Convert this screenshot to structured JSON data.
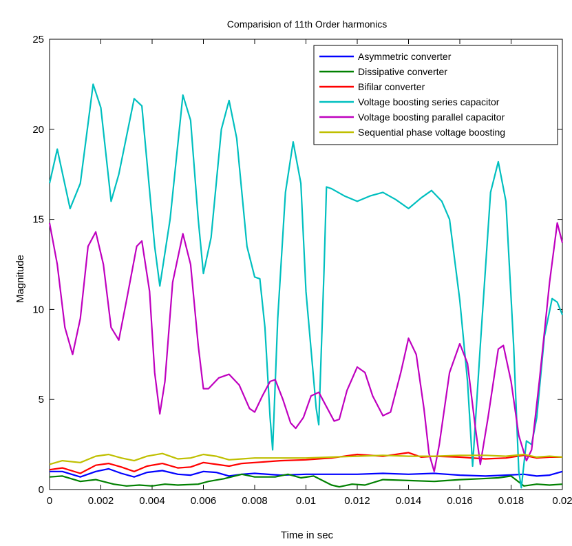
{
  "chart_data": {
    "type": "line",
    "title": "Comparision of 11th Order harmonics",
    "xlabel": "Time in sec",
    "ylabel": "Magnitude",
    "xlim": [
      0,
      0.02
    ],
    "ylim": [
      0,
      25
    ],
    "xticks": [
      0,
      0.002,
      0.004,
      0.006,
      0.008,
      0.01,
      0.012,
      0.014,
      0.016,
      0.018,
      0.02
    ],
    "xtick_labels": [
      "0",
      "0.002",
      "0.004",
      "0.006",
      "0.008",
      "0.01",
      "0.012",
      "0.014",
      "0.016",
      "0.018",
      "0.02"
    ],
    "yticks": [
      0,
      5,
      10,
      15,
      20,
      25
    ],
    "ytick_labels": [
      "0",
      "5",
      "10",
      "15",
      "20",
      "25"
    ],
    "grid": false,
    "legend_position": "top-right",
    "series": [
      {
        "name": "Asymmetric converter",
        "color": "#0000ff",
        "points": [
          [
            0,
            1.0
          ],
          [
            0.0005,
            1.0
          ],
          [
            0.0012,
            0.7
          ],
          [
            0.0018,
            1.0
          ],
          [
            0.0023,
            1.15
          ],
          [
            0.0028,
            0.9
          ],
          [
            0.0033,
            0.7
          ],
          [
            0.0038,
            0.95
          ],
          [
            0.0044,
            1.05
          ],
          [
            0.005,
            0.85
          ],
          [
            0.0055,
            0.8
          ],
          [
            0.006,
            1.0
          ],
          [
            0.0065,
            0.95
          ],
          [
            0.007,
            0.75
          ],
          [
            0.0075,
            0.85
          ],
          [
            0.008,
            0.9
          ],
          [
            0.009,
            0.8
          ],
          [
            0.01,
            0.85
          ],
          [
            0.011,
            0.85
          ],
          [
            0.012,
            0.85
          ],
          [
            0.013,
            0.9
          ],
          [
            0.014,
            0.85
          ],
          [
            0.015,
            0.9
          ],
          [
            0.016,
            0.8
          ],
          [
            0.017,
            0.75
          ],
          [
            0.0178,
            0.8
          ],
          [
            0.0185,
            0.85
          ],
          [
            0.019,
            0.75
          ],
          [
            0.0195,
            0.8
          ],
          [
            0.02,
            1.0
          ]
        ]
      },
      {
        "name": "Dissipative converter",
        "color": "#008000",
        "points": [
          [
            0,
            0.7
          ],
          [
            0.0005,
            0.75
          ],
          [
            0.0012,
            0.45
          ],
          [
            0.0018,
            0.55
          ],
          [
            0.0025,
            0.3
          ],
          [
            0.003,
            0.2
          ],
          [
            0.0035,
            0.25
          ],
          [
            0.004,
            0.2
          ],
          [
            0.0045,
            0.3
          ],
          [
            0.005,
            0.25
          ],
          [
            0.0058,
            0.3
          ],
          [
            0.0062,
            0.45
          ],
          [
            0.0068,
            0.6
          ],
          [
            0.0075,
            0.85
          ],
          [
            0.008,
            0.7
          ],
          [
            0.0088,
            0.7
          ],
          [
            0.0093,
            0.85
          ],
          [
            0.0098,
            0.65
          ],
          [
            0.0103,
            0.75
          ],
          [
            0.011,
            0.25
          ],
          [
            0.0113,
            0.15
          ],
          [
            0.0118,
            0.3
          ],
          [
            0.0123,
            0.25
          ],
          [
            0.013,
            0.55
          ],
          [
            0.014,
            0.5
          ],
          [
            0.015,
            0.45
          ],
          [
            0.016,
            0.55
          ],
          [
            0.0168,
            0.6
          ],
          [
            0.0175,
            0.65
          ],
          [
            0.018,
            0.75
          ],
          [
            0.0185,
            0.2
          ],
          [
            0.019,
            0.3
          ],
          [
            0.0195,
            0.25
          ],
          [
            0.02,
            0.3
          ]
        ]
      },
      {
        "name": "Bifilar converter",
        "color": "#ff0000",
        "points": [
          [
            0,
            1.1
          ],
          [
            0.0005,
            1.2
          ],
          [
            0.0012,
            0.9
          ],
          [
            0.0018,
            1.35
          ],
          [
            0.0023,
            1.45
          ],
          [
            0.0028,
            1.25
          ],
          [
            0.0033,
            1.0
          ],
          [
            0.0038,
            1.3
          ],
          [
            0.0044,
            1.45
          ],
          [
            0.005,
            1.2
          ],
          [
            0.0055,
            1.25
          ],
          [
            0.006,
            1.5
          ],
          [
            0.0065,
            1.4
          ],
          [
            0.007,
            1.3
          ],
          [
            0.0075,
            1.45
          ],
          [
            0.008,
            1.5
          ],
          [
            0.009,
            1.6
          ],
          [
            0.01,
            1.65
          ],
          [
            0.011,
            1.75
          ],
          [
            0.012,
            1.95
          ],
          [
            0.013,
            1.85
          ],
          [
            0.014,
            2.05
          ],
          [
            0.0145,
            1.8
          ],
          [
            0.015,
            1.85
          ],
          [
            0.016,
            1.8
          ],
          [
            0.017,
            1.7
          ],
          [
            0.0178,
            1.75
          ],
          [
            0.0185,
            1.9
          ],
          [
            0.019,
            1.75
          ],
          [
            0.0195,
            1.8
          ],
          [
            0.02,
            1.8
          ]
        ]
      },
      {
        "name": "Voltage boosting series capacitor",
        "color": "#00bfbf",
        "points": [
          [
            0,
            17.0
          ],
          [
            0.0003,
            18.9
          ],
          [
            0.0008,
            15.6
          ],
          [
            0.0012,
            17.0
          ],
          [
            0.0017,
            22.5
          ],
          [
            0.002,
            21.2
          ],
          [
            0.0024,
            16.0
          ],
          [
            0.0027,
            17.5
          ],
          [
            0.0033,
            21.7
          ],
          [
            0.0036,
            21.3
          ],
          [
            0.0041,
            13.5
          ],
          [
            0.0043,
            11.3
          ],
          [
            0.0047,
            15.0
          ],
          [
            0.0052,
            21.9
          ],
          [
            0.0055,
            20.5
          ],
          [
            0.0058,
            15.0
          ],
          [
            0.006,
            12.0
          ],
          [
            0.0063,
            14.0
          ],
          [
            0.0067,
            20.0
          ],
          [
            0.007,
            21.6
          ],
          [
            0.0073,
            19.5
          ],
          [
            0.0077,
            13.5
          ],
          [
            0.008,
            11.8
          ],
          [
            0.0082,
            11.7
          ],
          [
            0.0084,
            9.0
          ],
          [
            0.0086,
            4.0
          ],
          [
            0.0087,
            2.2
          ],
          [
            0.0089,
            9.5
          ],
          [
            0.0092,
            16.5
          ],
          [
            0.0095,
            19.3
          ],
          [
            0.0098,
            17.0
          ],
          [
            0.01,
            11.0
          ],
          [
            0.0104,
            4.5
          ],
          [
            0.0105,
            3.6
          ],
          [
            0.0107,
            12.0
          ],
          [
            0.0108,
            16.8
          ],
          [
            0.011,
            16.7
          ],
          [
            0.0115,
            16.3
          ],
          [
            0.012,
            16.0
          ],
          [
            0.0125,
            16.3
          ],
          [
            0.013,
            16.5
          ],
          [
            0.0135,
            16.1
          ],
          [
            0.014,
            15.6
          ],
          [
            0.0145,
            16.2
          ],
          [
            0.0149,
            16.6
          ],
          [
            0.0153,
            16.0
          ],
          [
            0.0156,
            15.0
          ],
          [
            0.016,
            10.5
          ],
          [
            0.0163,
            6.0
          ],
          [
            0.0165,
            1.3
          ],
          [
            0.0168,
            8.0
          ],
          [
            0.0172,
            16.5
          ],
          [
            0.0175,
            18.2
          ],
          [
            0.0178,
            16.0
          ],
          [
            0.0181,
            8.0
          ],
          [
            0.0183,
            1.0
          ],
          [
            0.0184,
            0.1
          ],
          [
            0.0186,
            2.7
          ],
          [
            0.0188,
            2.5
          ],
          [
            0.019,
            4.0
          ],
          [
            0.0193,
            8.5
          ],
          [
            0.0196,
            10.6
          ],
          [
            0.0198,
            10.4
          ],
          [
            0.02,
            9.7
          ]
        ]
      },
      {
        "name": "Voltage boosting parallel capacitor",
        "color": "#bf00bf",
        "points": [
          [
            0,
            14.8
          ],
          [
            0.0003,
            12.5
          ],
          [
            0.0006,
            9.0
          ],
          [
            0.0009,
            7.5
          ],
          [
            0.0012,
            9.5
          ],
          [
            0.0015,
            13.5
          ],
          [
            0.0018,
            14.3
          ],
          [
            0.0021,
            12.5
          ],
          [
            0.0024,
            9.0
          ],
          [
            0.0027,
            8.3
          ],
          [
            0.003,
            10.5
          ],
          [
            0.0034,
            13.5
          ],
          [
            0.0036,
            13.8
          ],
          [
            0.0039,
            11.0
          ],
          [
            0.0041,
            6.5
          ],
          [
            0.0043,
            4.2
          ],
          [
            0.0045,
            6.0
          ],
          [
            0.0048,
            11.5
          ],
          [
            0.0052,
            14.2
          ],
          [
            0.0055,
            12.5
          ],
          [
            0.0058,
            8.0
          ],
          [
            0.006,
            5.6
          ],
          [
            0.0062,
            5.6
          ],
          [
            0.0066,
            6.2
          ],
          [
            0.007,
            6.4
          ],
          [
            0.0074,
            5.8
          ],
          [
            0.0078,
            4.5
          ],
          [
            0.008,
            4.3
          ],
          [
            0.0083,
            5.2
          ],
          [
            0.0086,
            6.0
          ],
          [
            0.0088,
            6.1
          ],
          [
            0.0091,
            5.0
          ],
          [
            0.0094,
            3.7
          ],
          [
            0.0096,
            3.4
          ],
          [
            0.0099,
            4.0
          ],
          [
            0.0102,
            5.2
          ],
          [
            0.0105,
            5.4
          ],
          [
            0.0108,
            4.6
          ],
          [
            0.0111,
            3.8
          ],
          [
            0.0113,
            3.9
          ],
          [
            0.0116,
            5.5
          ],
          [
            0.012,
            6.8
          ],
          [
            0.0123,
            6.5
          ],
          [
            0.0126,
            5.2
          ],
          [
            0.013,
            4.1
          ],
          [
            0.0133,
            4.3
          ],
          [
            0.0137,
            6.5
          ],
          [
            0.014,
            8.4
          ],
          [
            0.0143,
            7.5
          ],
          [
            0.0146,
            4.5
          ],
          [
            0.0148,
            2.0
          ],
          [
            0.015,
            1.0
          ],
          [
            0.0152,
            2.5
          ],
          [
            0.0156,
            6.5
          ],
          [
            0.016,
            8.1
          ],
          [
            0.0163,
            7.0
          ],
          [
            0.0166,
            3.5
          ],
          [
            0.0168,
            1.4
          ],
          [
            0.0171,
            4.0
          ],
          [
            0.0175,
            7.8
          ],
          [
            0.0177,
            8.0
          ],
          [
            0.018,
            6.0
          ],
          [
            0.0183,
            3.0
          ],
          [
            0.0186,
            1.6
          ],
          [
            0.0188,
            2.2
          ],
          [
            0.0191,
            6.0
          ],
          [
            0.0195,
            11.5
          ],
          [
            0.0198,
            14.8
          ],
          [
            0.02,
            13.7
          ]
        ]
      },
      {
        "name": "Sequential phase voltage boosting",
        "color": "#bfbf00",
        "points": [
          [
            0,
            1.4
          ],
          [
            0.0005,
            1.6
          ],
          [
            0.0012,
            1.5
          ],
          [
            0.0018,
            1.85
          ],
          [
            0.0023,
            1.95
          ],
          [
            0.0028,
            1.75
          ],
          [
            0.0033,
            1.6
          ],
          [
            0.0038,
            1.85
          ],
          [
            0.0044,
            2.0
          ],
          [
            0.005,
            1.7
          ],
          [
            0.0055,
            1.75
          ],
          [
            0.006,
            1.95
          ],
          [
            0.0065,
            1.85
          ],
          [
            0.007,
            1.65
          ],
          [
            0.0075,
            1.7
          ],
          [
            0.008,
            1.75
          ],
          [
            0.009,
            1.75
          ],
          [
            0.01,
            1.75
          ],
          [
            0.011,
            1.8
          ],
          [
            0.012,
            1.85
          ],
          [
            0.013,
            1.9
          ],
          [
            0.014,
            1.85
          ],
          [
            0.015,
            1.85
          ],
          [
            0.016,
            1.9
          ],
          [
            0.017,
            1.9
          ],
          [
            0.0178,
            1.85
          ],
          [
            0.0185,
            1.95
          ],
          [
            0.019,
            1.8
          ],
          [
            0.0195,
            1.85
          ],
          [
            0.02,
            1.8
          ]
        ]
      }
    ]
  }
}
